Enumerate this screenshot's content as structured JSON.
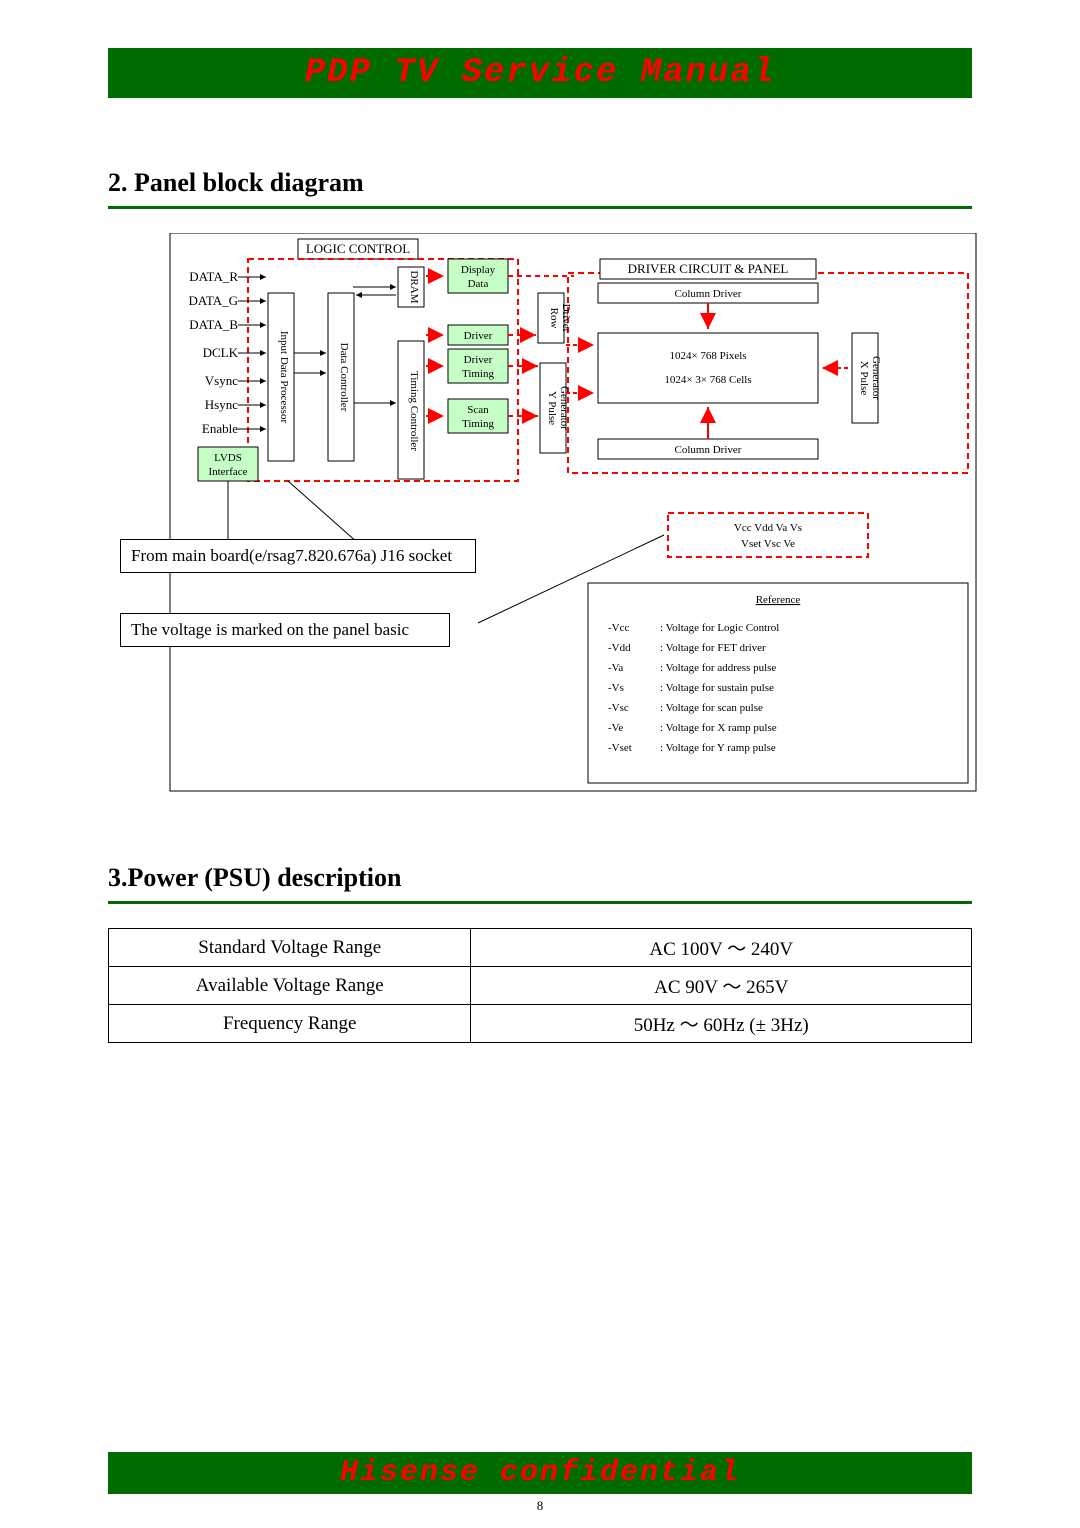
{
  "banners": {
    "top": "PDP TV Service Manual",
    "bottom": "Hisense confidential"
  },
  "page_number": "8",
  "colors": {
    "banner_bg": "#006b00",
    "banner_text": "#ff0000",
    "highlight_green": "#c6ffc6",
    "dash_red": "#ff0000"
  },
  "section2": {
    "title": "2. Panel block diagram",
    "callout1": "From  main  board(e/rsag7.820.676a)  J16  socket",
    "callout2": "The voltage is marked on the panel basic",
    "labels": {
      "logic_control": "LOGIC CONTROL",
      "inputs": [
        "DATA_R",
        "DATA_G",
        "DATA_B",
        "DCLK",
        "Vsync",
        "Hsync",
        "Enable"
      ],
      "lvds": "LVDS\nInterface",
      "idp": "Input Data Processor",
      "dram": "DRAM",
      "dc": "Data Controller",
      "tc": "Timing Controller",
      "display_data": "Display\nData",
      "driver": "Driver",
      "driver_timing": "Driver\nTiming",
      "scan_timing": "Scan\nTiming",
      "row_driver": "Row\nDriver",
      "column_driver": "Column Driver",
      "y_pulse": "Y Pulse\nGenerator",
      "x_pulse": "X Pulse\nGenerator",
      "driver_circuit": "DRIVER CIRCUIT & PANEL",
      "pixels": "1024× 768 Pixels",
      "cells": "1024× 3× 768 Cells",
      "volt_box": "Vcc Vdd Va Vs\nVset Vsc Ve",
      "reference_title": "Reference",
      "reference_rows": [
        [
          "-Vcc",
          "Voltage for Logic Control"
        ],
        [
          "-Vdd",
          "Voltage for FET driver"
        ],
        [
          "-Va",
          "Voltage for address pulse"
        ],
        [
          "-Vs",
          "Voltage for sustain pulse"
        ],
        [
          "-Vsc",
          "Voltage for scan pulse"
        ],
        [
          "-Ve",
          "Voltage for X ramp pulse"
        ],
        [
          "-Vset",
          "Voltage for Y ramp pulse"
        ]
      ]
    }
  },
  "section3": {
    "title": "3.Power (PSU) description",
    "rows": [
      [
        "Standard Voltage Range",
        "AC 100V ～ 240V"
      ],
      [
        "Available Voltage Range",
        "AC 90V ～ 265V"
      ],
      [
        "Frequency Range",
        "50Hz ～ 60Hz (± 3Hz)"
      ]
    ]
  }
}
